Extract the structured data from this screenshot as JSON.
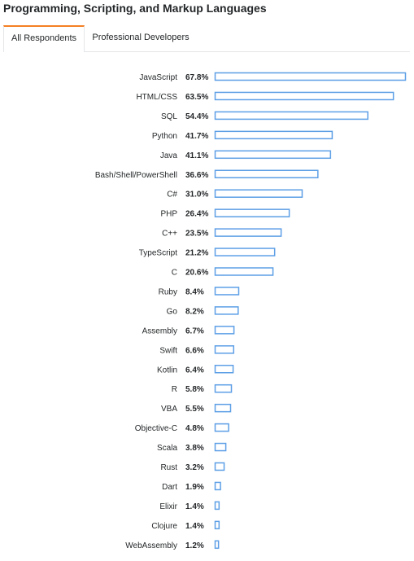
{
  "page": {
    "title": "Programming, Scripting, and Markup Languages"
  },
  "tabs": [
    {
      "label": "All Respondents",
      "active": true
    },
    {
      "label": "Professional Developers",
      "active": false
    }
  ],
  "colors": {
    "accent": "#f48024",
    "bar_stroke": "#5d9fe6",
    "bar_fill": "#ffffff"
  },
  "chart_data": {
    "type": "bar",
    "orientation": "horizontal",
    "categories": [
      "JavaScript",
      "HTML/CSS",
      "SQL",
      "Python",
      "Java",
      "Bash/Shell/PowerShell",
      "C#",
      "PHP",
      "C++",
      "TypeScript",
      "C",
      "Ruby",
      "Go",
      "Assembly",
      "Swift",
      "Kotlin",
      "R",
      "VBA",
      "Objective-C",
      "Scala",
      "Rust",
      "Dart",
      "Elixir",
      "Clojure",
      "WebAssembly"
    ],
    "values": [
      67.8,
      63.5,
      54.4,
      41.7,
      41.1,
      36.6,
      31.0,
      26.4,
      23.5,
      21.2,
      20.6,
      8.4,
      8.2,
      6.7,
      6.6,
      6.4,
      5.8,
      5.5,
      4.8,
      3.8,
      3.2,
      1.9,
      1.4,
      1.4,
      1.2
    ],
    "value_labels": [
      "67.8%",
      "63.5%",
      "54.4%",
      "41.7%",
      "41.1%",
      "36.6%",
      "31.0%",
      "26.4%",
      "23.5%",
      "21.2%",
      "20.6%",
      "8.4%",
      "8.2%",
      "6.7%",
      "6.6%",
      "6.4%",
      "5.8%",
      "5.5%",
      "4.8%",
      "3.8%",
      "3.2%",
      "1.9%",
      "1.4%",
      "1.4%",
      "1.2%"
    ],
    "xlim": [
      0,
      67.8
    ],
    "grid": false
  }
}
